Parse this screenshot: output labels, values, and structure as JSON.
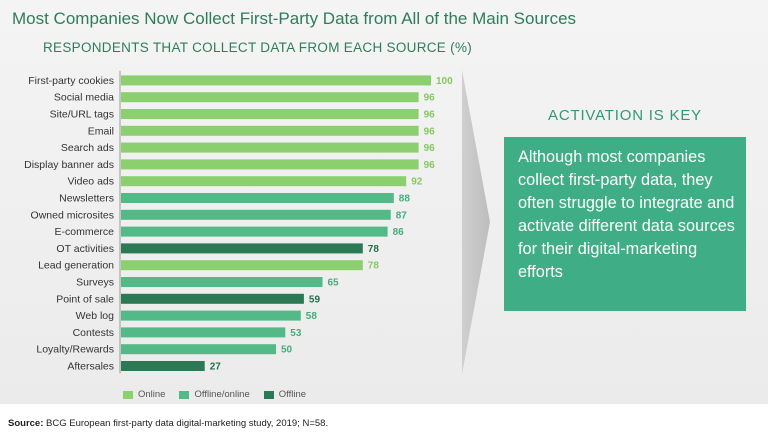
{
  "title": "Most Companies Now Collect First-Party Data from All of the Main Sources",
  "subtitle": "RESPONDENTS THAT COLLECT DATA FROM EACH SOURCE (%)",
  "colors": {
    "online": "#8ccf6e",
    "offline_online": "#52b987",
    "offline": "#2b7a55",
    "value_online": "#86c95f",
    "value_offline_online": "#45ad7a",
    "value_offline": "#23704c",
    "callout_bg": "#3fae86",
    "title": "#2e7d5b"
  },
  "chart_data": {
    "type": "bar",
    "orientation": "horizontal",
    "title": "Most Companies Now Collect First-Party Data from All of the Main Sources",
    "subtitle": "RESPONDENTS THAT COLLECT DATA FROM EACH SOURCE (%)",
    "xlim": [
      0,
      100
    ],
    "categories": [
      "First-party cookies",
      "Social media",
      "Site/URL tags",
      "Email",
      "Search ads",
      "Display banner ads",
      "Video ads",
      "Newsletters",
      "Owned microsites",
      "E-commerce",
      "OT activities",
      "Lead generation",
      "Surveys",
      "Point of sale",
      "Web log",
      "Contests",
      "Loyalty/Rewards",
      "Aftersales"
    ],
    "values": [
      100,
      96,
      96,
      96,
      96,
      96,
      92,
      88,
      87,
      86,
      78,
      78,
      65,
      59,
      58,
      53,
      50,
      27
    ],
    "groups": [
      "online",
      "online",
      "online",
      "online",
      "online",
      "online",
      "online",
      "offline_online",
      "offline_online",
      "offline_online",
      "offline",
      "online",
      "offline_online",
      "offline",
      "offline_online",
      "offline_online",
      "offline_online",
      "offline"
    ],
    "legend": [
      {
        "key": "online",
        "label": "Online"
      },
      {
        "key": "offline_online",
        "label": "Offline/online"
      },
      {
        "key": "offline",
        "label": "Offline"
      }
    ],
    "legend_position": "bottom-left"
  },
  "callout": {
    "heading": "ACTIVATION IS KEY",
    "text": "Although most companies collect first-party data, they often struggle to integrate and activate different data sources for their digital-marketing efforts"
  },
  "source": {
    "label": "Source:",
    "text": "BCG European first-party data digital-marketing study, 2019; N=58."
  }
}
